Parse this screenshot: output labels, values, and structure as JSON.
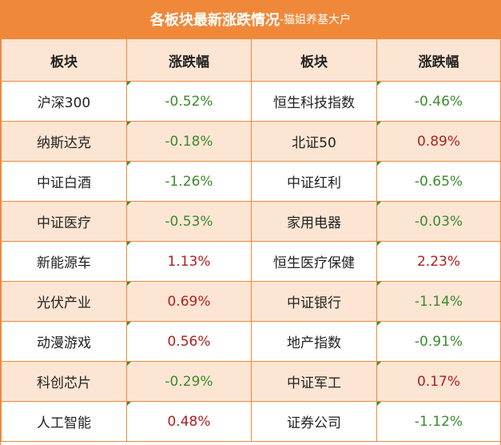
{
  "title": {
    "main": "各板块最新涨跌情况",
    "sub": "-猫姐养基大户"
  },
  "headers": [
    "板块",
    "涨跌幅",
    "板块",
    "涨跌幅"
  ],
  "rows": [
    {
      "name1": "沪深300",
      "val1": "-0.52%",
      "dir1": "neg",
      "name2": "恒生科技指数",
      "val2": "-0.46%",
      "dir2": "neg"
    },
    {
      "name1": "纳斯达克",
      "val1": "-0.18%",
      "dir1": "neg",
      "name2": "北证50",
      "val2": "0.89%",
      "dir2": "pos"
    },
    {
      "name1": "中证白酒",
      "val1": "-1.26%",
      "dir1": "neg",
      "name2": "中证红利",
      "val2": "-0.65%",
      "dir2": "neg"
    },
    {
      "name1": "中证医疗",
      "val1": "-0.53%",
      "dir1": "neg",
      "name2": "家用电器",
      "val2": "-0.03%",
      "dir2": "neg"
    },
    {
      "name1": "新能源车",
      "val1": "1.13%",
      "dir1": "pos",
      "name2": "恒生医疗保健",
      "val2": "2.23%",
      "dir2": "pos"
    },
    {
      "name1": "光伏产业",
      "val1": "0.69%",
      "dir1": "pos",
      "name2": "中证银行",
      "val2": "-1.14%",
      "dir2": "neg"
    },
    {
      "name1": "动漫游戏",
      "val1": "0.56%",
      "dir1": "pos",
      "name2": "地产指数",
      "val2": "-0.91%",
      "dir2": "neg"
    },
    {
      "name1": "科创芯片",
      "val1": "-0.29%",
      "dir1": "neg",
      "name2": "中证军工",
      "val2": "0.17%",
      "dir2": "pos"
    },
    {
      "name1": "人工智能",
      "val1": "0.48%",
      "dir1": "pos",
      "name2": "证券公司",
      "val2": "-1.12%",
      "dir2": "neg"
    }
  ],
  "colors": {
    "accent": "#f0883a",
    "row_alt": "#fde5d3",
    "negative": "#3c8a2e",
    "positive": "#b0201e"
  }
}
